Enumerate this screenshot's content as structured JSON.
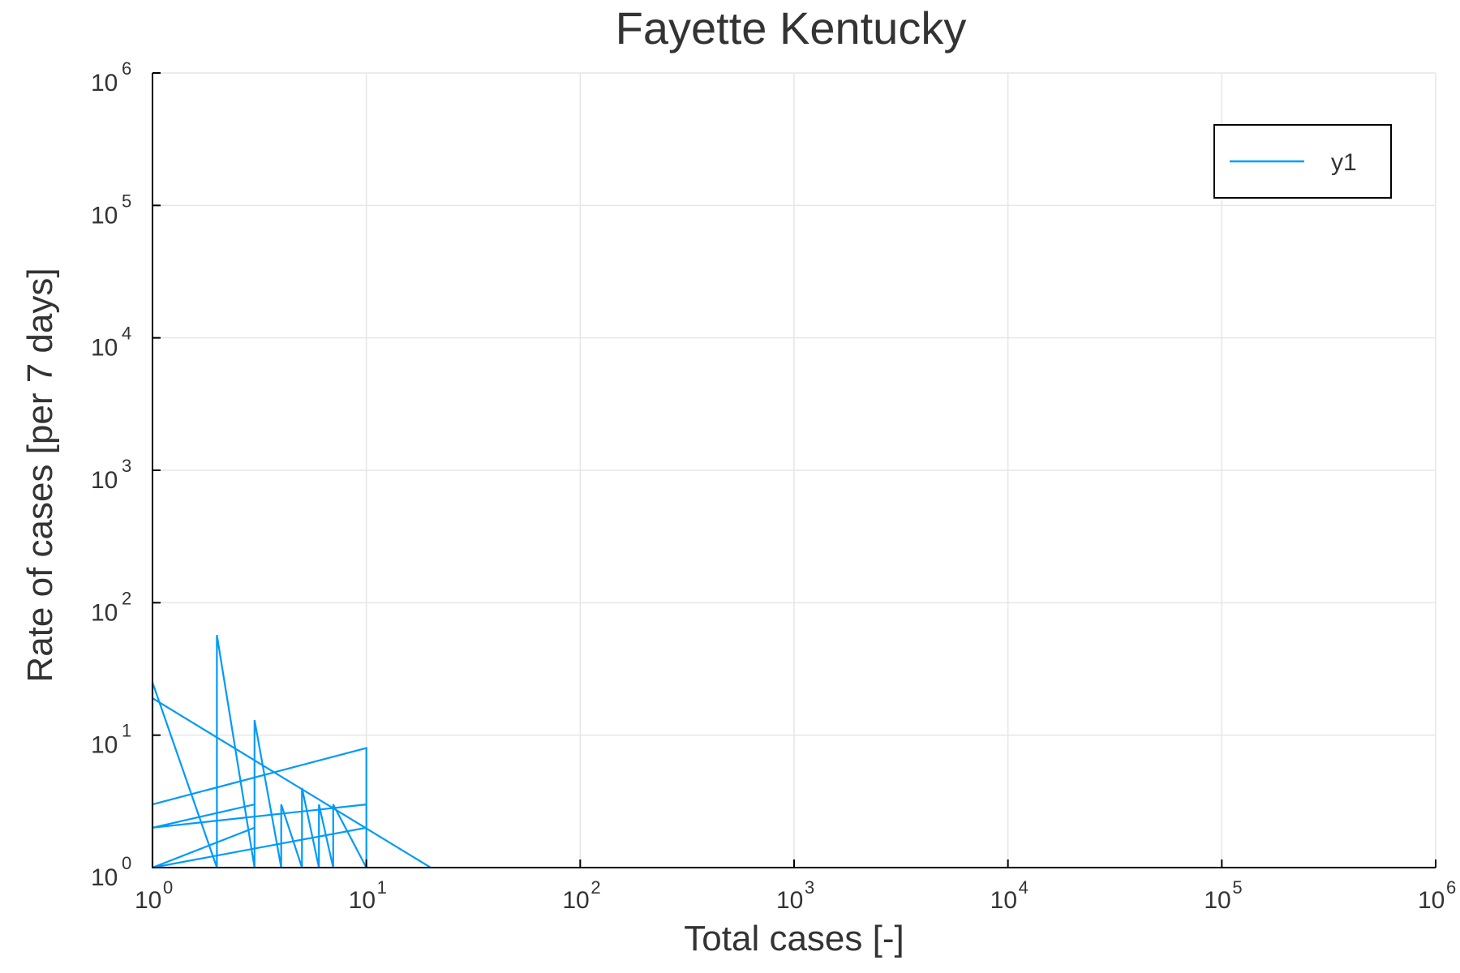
{
  "chart_data": {
    "type": "line",
    "title": "Fayette Kentucky",
    "xlabel": "Total cases [-]",
    "ylabel": "Rate of cases [per 7 days]",
    "xscale": "log",
    "yscale": "log",
    "xlim": [
      1,
      1000000
    ],
    "ylim": [
      1,
      1000000
    ],
    "grid": true,
    "legend_position": "top-right",
    "x_ticks": [
      {
        "base": "10",
        "exp": "0",
        "value": 1
      },
      {
        "base": "10",
        "exp": "1",
        "value": 10
      },
      {
        "base": "10",
        "exp": "2",
        "value": 100
      },
      {
        "base": "10",
        "exp": "3",
        "value": 1000
      },
      {
        "base": "10",
        "exp": "4",
        "value": 10000
      },
      {
        "base": "10",
        "exp": "5",
        "value": 100000
      },
      {
        "base": "10",
        "exp": "6",
        "value": 1000000
      }
    ],
    "y_ticks": [
      {
        "base": "10",
        "exp": "0",
        "value": 1
      },
      {
        "base": "10",
        "exp": "1",
        "value": 10
      },
      {
        "base": "10",
        "exp": "2",
        "value": 100
      },
      {
        "base": "10",
        "exp": "3",
        "value": 1000
      },
      {
        "base": "10",
        "exp": "4",
        "value": 10000
      },
      {
        "base": "10",
        "exp": "5",
        "value": 100000
      },
      {
        "base": "10",
        "exp": "6",
        "value": 1000000
      }
    ],
    "series": [
      {
        "name": "y1",
        "color": "#009af9",
        "x": [
          1,
          1,
          2,
          2,
          3,
          3,
          4,
          4,
          5,
          5,
          6,
          6,
          7,
          7,
          10,
          10,
          1,
          1,
          1,
          3,
          3,
          1,
          1,
          10,
          10,
          1,
          1,
          20
        ],
        "y": [
          1,
          25,
          1,
          57,
          1,
          13,
          1,
          3,
          1,
          4,
          1,
          3,
          1,
          3,
          1,
          8,
          3,
          7,
          2,
          3,
          2,
          1,
          2,
          3,
          2,
          1,
          19,
          1
        ]
      }
    ]
  }
}
